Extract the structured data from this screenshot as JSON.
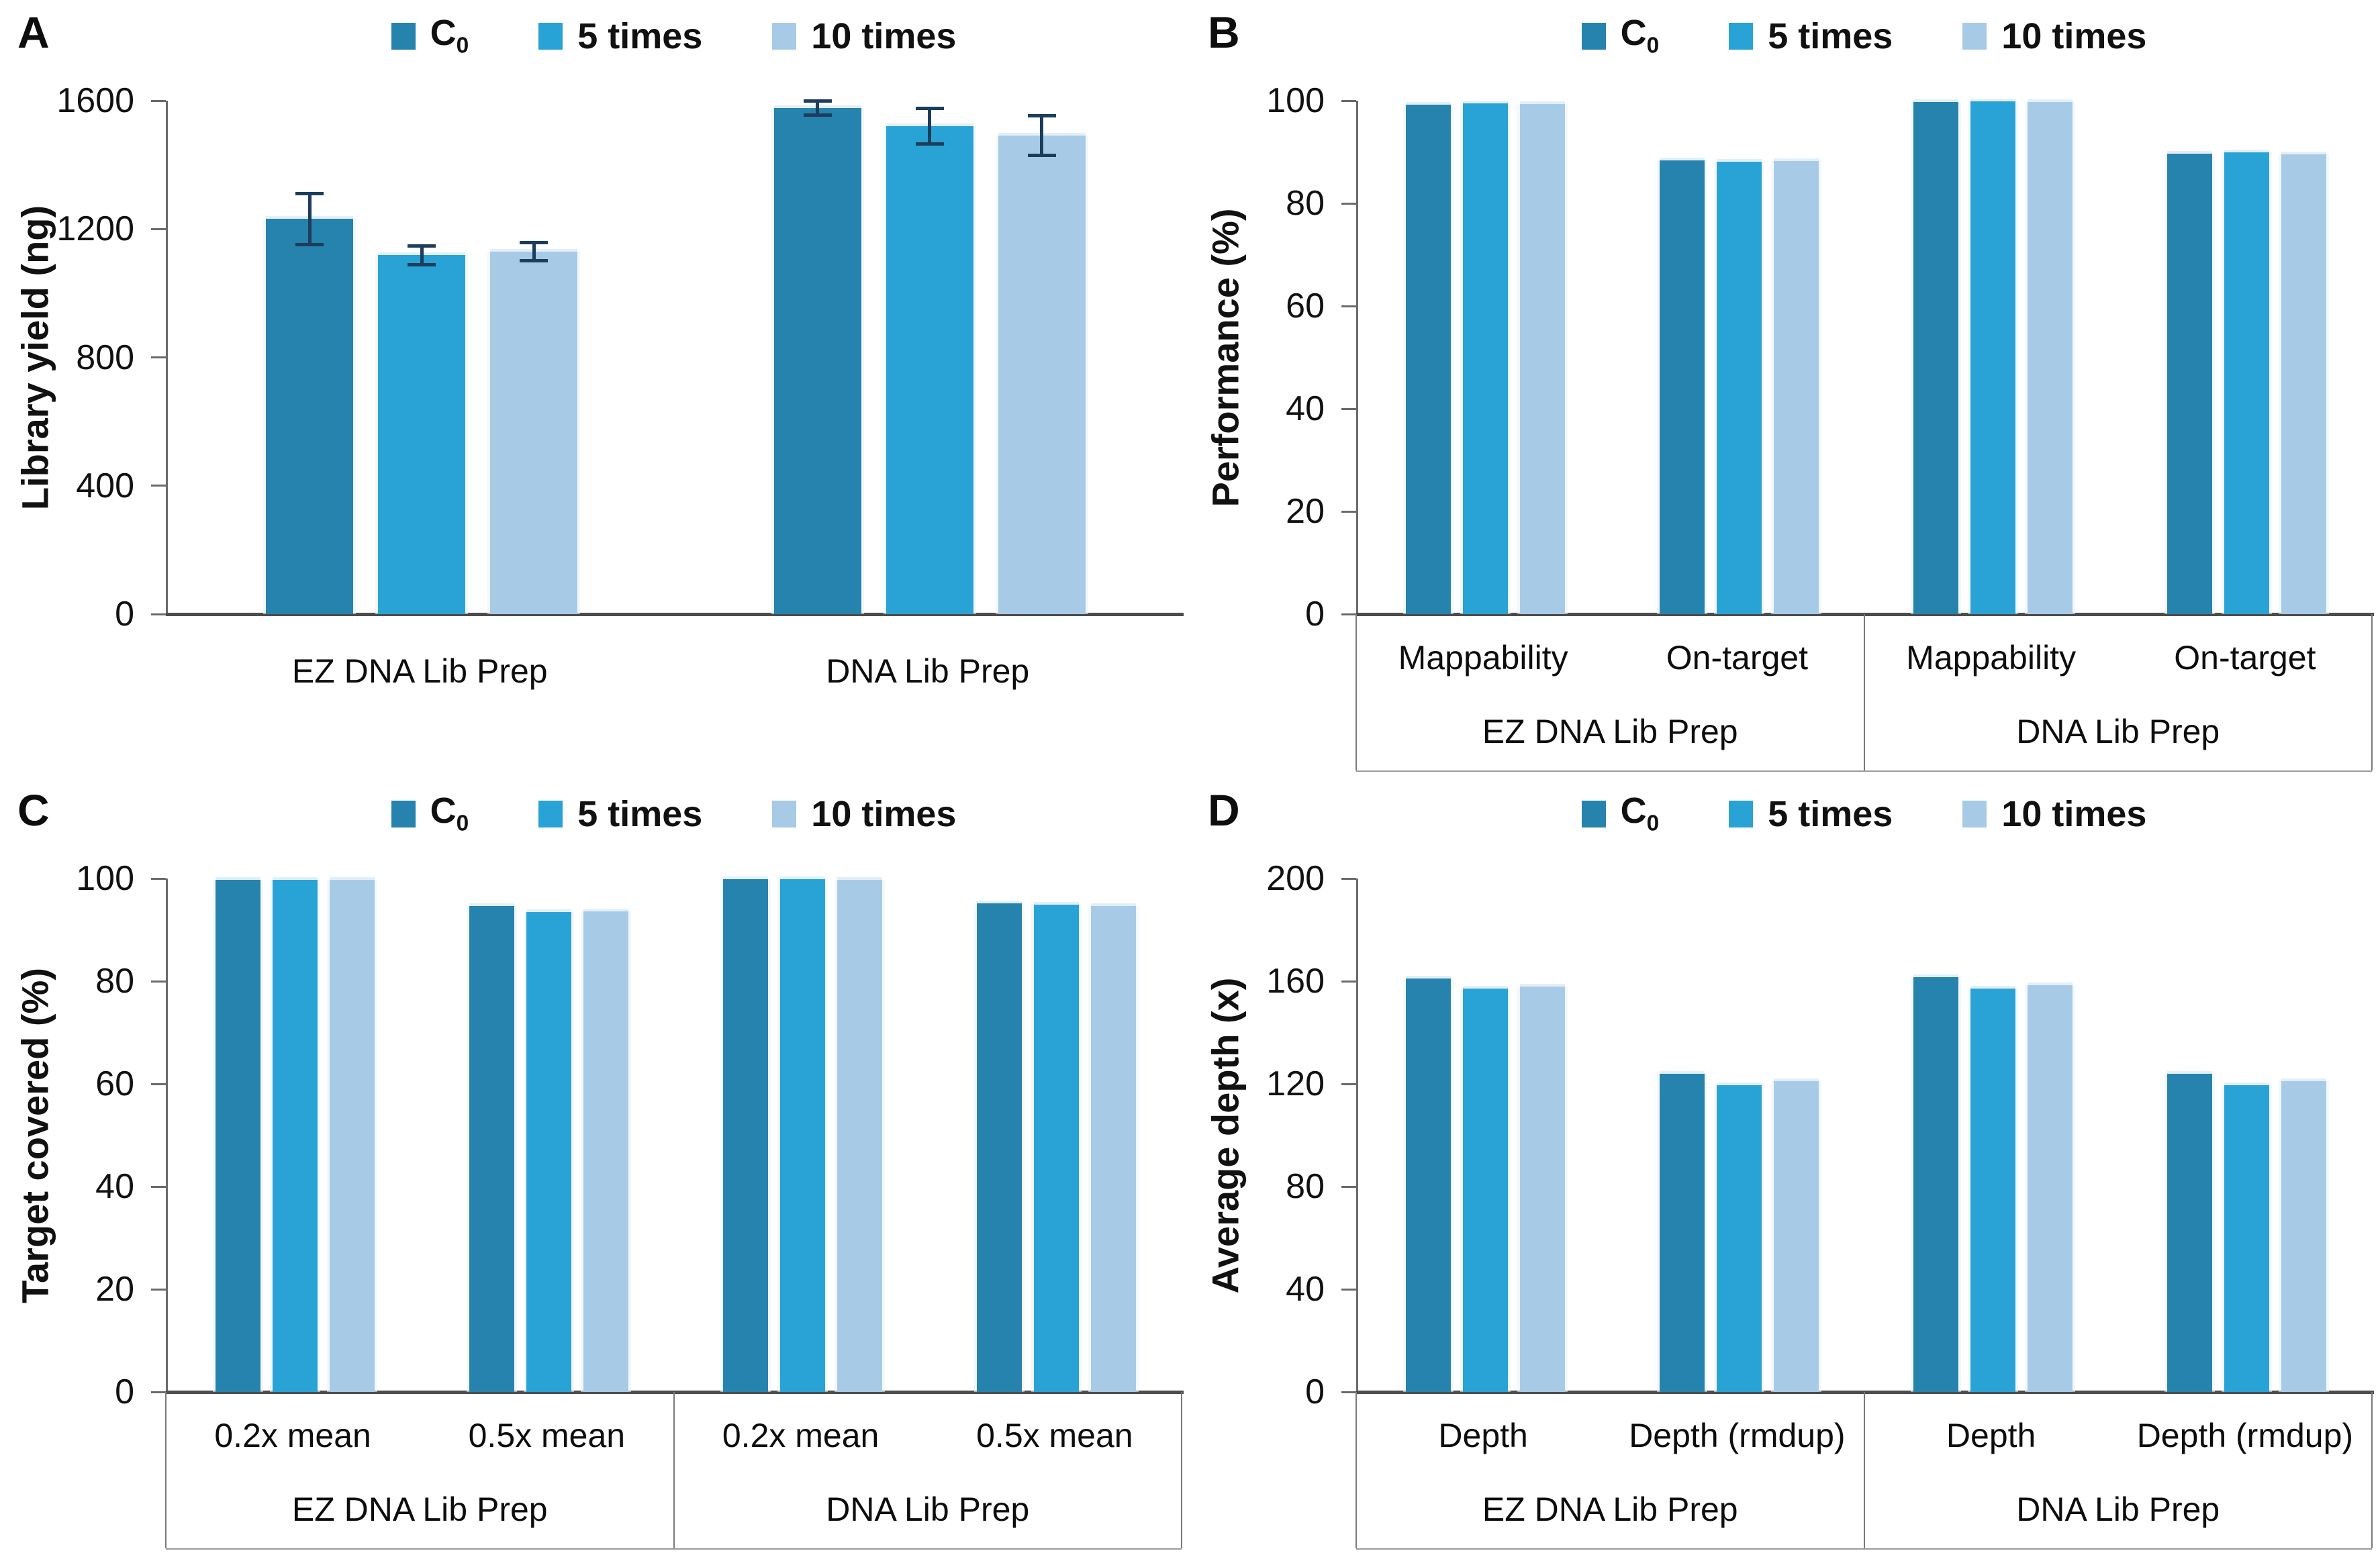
{
  "figure_title": "",
  "legend": {
    "items": [
      {
        "text": "C",
        "sub": "0"
      },
      {
        "text": "5 times",
        "sub": ""
      },
      {
        "text": "10 times",
        "sub": ""
      }
    ]
  },
  "colors": {
    "series": [
      "#2583ae",
      "#29a3d5",
      "#a7cbe6"
    ],
    "error_bar": "#1d3d5c",
    "axis": "#6a6a6a",
    "baseline": "#4d4d4d",
    "divider": "#7a7a7a",
    "text": "#111111"
  },
  "chart_data": [
    {
      "type": "bar",
      "panel": "A",
      "title": "",
      "xlabel": "",
      "ylabel": "Library yield (ng)",
      "ylim": [
        0,
        1600
      ],
      "yticks": [
        0,
        400,
        800,
        1200,
        1600
      ],
      "grid": false,
      "legend_entries": [
        "C0",
        "5 times",
        "10 times"
      ],
      "legend_position": "top",
      "two_row_axis": false,
      "groups": [
        {
          "label": "EZ DNA Lib Prep",
          "clusters": [
            {
              "label": "",
              "values": [
                1231,
                1118,
                1130
              ],
              "errors": [
                80,
                30,
                28
              ]
            }
          ]
        },
        {
          "label": "DNA Lib Prep",
          "clusters": [
            {
              "label": "",
              "values": [
                1578,
                1520,
                1492
              ],
              "errors": [
                22,
                55,
                62
              ]
            }
          ]
        }
      ]
    },
    {
      "type": "bar",
      "panel": "B",
      "title": "",
      "xlabel": "",
      "ylabel": "Performance (%)",
      "ylim": [
        0,
        100
      ],
      "yticks": [
        0,
        20,
        40,
        60,
        80,
        100
      ],
      "grid": false,
      "legend_entries": [
        "C0",
        "5 times",
        "10 times"
      ],
      "legend_position": "top",
      "two_row_axis": true,
      "groups": [
        {
          "label": "EZ DNA Lib Prep",
          "clusters": [
            {
              "label": "Mappability",
              "values": [
                99.2,
                99.5,
                99.4
              ],
              "errors": null
            },
            {
              "label": "On-target",
              "values": [
                88.4,
                88.1,
                88.2
              ],
              "errors": null
            }
          ]
        },
        {
          "label": "DNA Lib Prep",
          "clusters": [
            {
              "label": "Mappability",
              "values": [
                99.8,
                99.9,
                99.8
              ],
              "errors": null
            },
            {
              "label": "On-target",
              "values": [
                89.7,
                89.9,
                89.6
              ],
              "errors": null
            }
          ]
        }
      ]
    },
    {
      "type": "bar",
      "panel": "C",
      "title": "",
      "xlabel": "",
      "ylabel": "Target covered (%)",
      "ylim": [
        0,
        100
      ],
      "yticks": [
        0,
        20,
        40,
        60,
        80,
        100
      ],
      "grid": false,
      "legend_entries": [
        "C0",
        "5 times",
        "10 times"
      ],
      "legend_position": "top",
      "two_row_axis": true,
      "groups": [
        {
          "label": "EZ DNA Lib Prep",
          "clusters": [
            {
              "label": "0.2x mean",
              "values": [
                99.8,
                99.8,
                99.7
              ],
              "errors": null
            },
            {
              "label": "0.5x mean",
              "values": [
                94.7,
                93.5,
                93.6
              ],
              "errors": null
            }
          ]
        },
        {
          "label": "DNA Lib Prep",
          "clusters": [
            {
              "label": "0.2x mean",
              "values": [
                99.9,
                99.9,
                99.8
              ],
              "errors": null
            },
            {
              "label": "0.5x mean",
              "values": [
                95.2,
                94.9,
                94.6
              ],
              "errors": null
            }
          ]
        }
      ]
    },
    {
      "type": "bar",
      "panel": "D",
      "title": "",
      "xlabel": "",
      "ylabel": "Average depth (x)",
      "ylim": [
        0,
        200
      ],
      "yticks": [
        0,
        40,
        80,
        120,
        160,
        200
      ],
      "grid": false,
      "legend_entries": [
        "C0",
        "5 times",
        "10 times"
      ],
      "legend_position": "top",
      "two_row_axis": true,
      "groups": [
        {
          "label": "EZ DNA Lib Prep",
          "clusters": [
            {
              "label": "Depth",
              "values": [
                161,
                157,
                158
              ],
              "errors": null
            },
            {
              "label": "Depth (rmdup)",
              "values": [
                124,
                119.5,
                121
              ],
              "errors": null
            }
          ]
        },
        {
          "label": "DNA Lib Prep",
          "clusters": [
            {
              "label": "Depth",
              "values": [
                161.5,
                157.2,
                158.4
              ],
              "errors": null
            },
            {
              "label": "Depth (rmdup)",
              "values": [
                124,
                119.5,
                121
              ],
              "errors": null
            }
          ]
        }
      ]
    }
  ]
}
